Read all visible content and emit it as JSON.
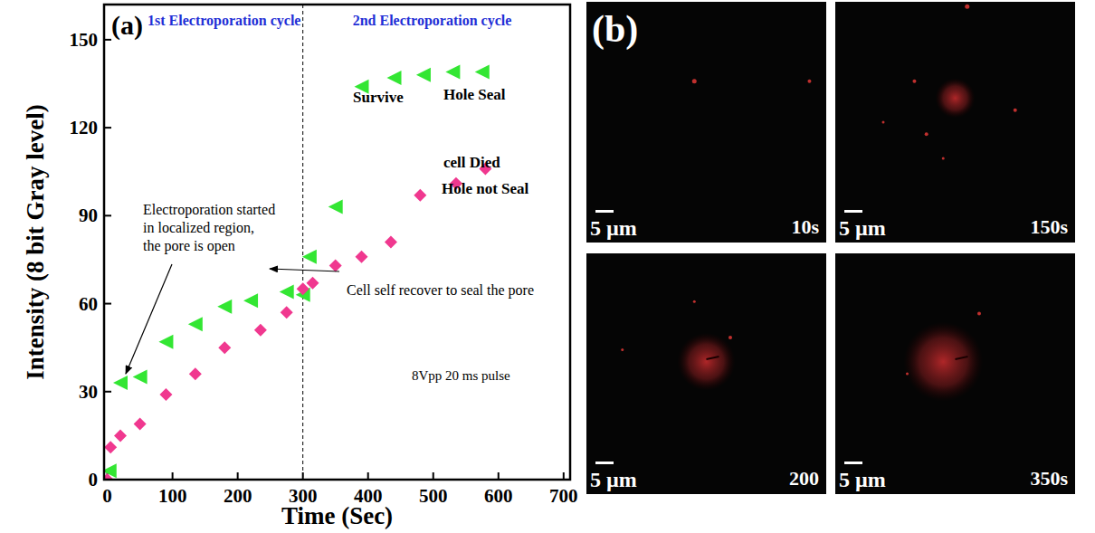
{
  "chart_data": {
    "type": "scatter",
    "panel_label": "(a)",
    "x_label": "Time (Sec)",
    "y_label": "Intensity (8 bit Gray level)",
    "xlim": [
      -5,
      710
    ],
    "ylim": [
      0,
      162
    ],
    "xticks": [
      0,
      100,
      200,
      300,
      400,
      500,
      600,
      700
    ],
    "yticks": [
      0,
      30,
      60,
      90,
      120,
      150
    ],
    "grid": false,
    "tick_labels": true,
    "vlines": [
      300
    ],
    "cycle_labels": [
      "1st Electroporation cycle",
      "2nd Electroporation cycle"
    ],
    "annotations": [
      "Electroporation started\nin localized region,\nthe pore is open",
      "Cell self recover to seal the pore",
      "Survive",
      "Hole Seal",
      "cell Died",
      "Hole not Seal",
      "8Vpp  20 ms pulse"
    ],
    "series": [
      {
        "color": "#33e633",
        "marker": "triangle-left",
        "x": [
          3,
          20,
          50,
          90,
          135,
          180,
          220,
          275,
          300,
          310,
          350,
          390,
          440,
          485,
          530,
          575
        ],
        "values": [
          3,
          33,
          35,
          47,
          53,
          59,
          61,
          64,
          63,
          76,
          93,
          134,
          137,
          138,
          139,
          139
        ]
      },
      {
        "color": "#f0388f",
        "marker": "diamond",
        "x": [
          0,
          5,
          20,
          50,
          90,
          135,
          180,
          235,
          275,
          300,
          315,
          350,
          390,
          435,
          480,
          535,
          580
        ],
        "values": [
          0,
          11,
          15,
          19,
          29,
          36,
          45,
          51,
          57,
          65,
          67,
          73,
          76,
          81,
          97,
          101,
          106
        ]
      }
    ]
  },
  "panel_b": {
    "label": "(b)",
    "images": [
      {
        "scale_bar": "5 µm",
        "time": "10s"
      },
      {
        "scale_bar": "5 µm",
        "time": "150s"
      },
      {
        "scale_bar": "5 µm",
        "time": "200"
      },
      {
        "scale_bar": "5 µm",
        "time": "350s"
      }
    ]
  }
}
